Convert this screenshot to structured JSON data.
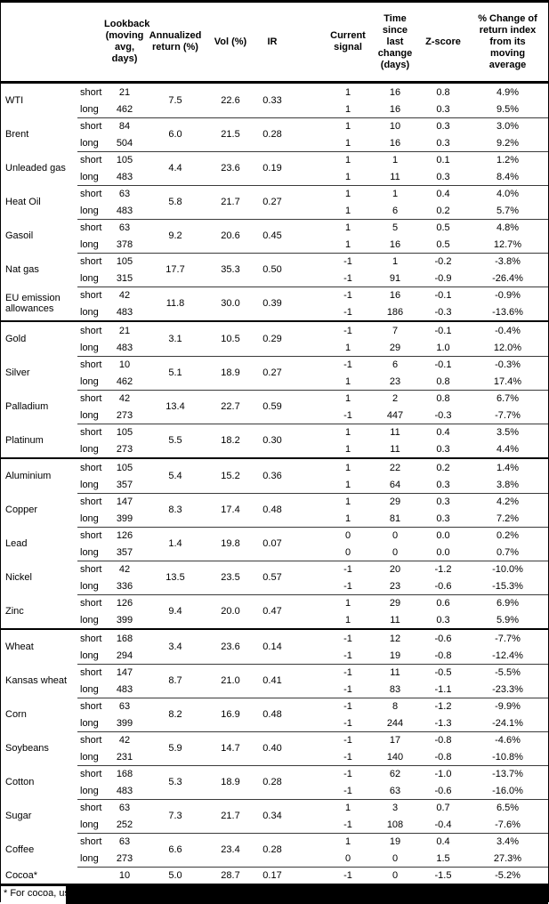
{
  "colors": {
    "background": "#ffffff",
    "text": "#000000",
    "thick_border": "#000000",
    "thin_line": "#3a3a3a",
    "redaction_bar": "#000000"
  },
  "table": {
    "columns": [
      {
        "key": "name",
        "label": ""
      },
      {
        "key": "position",
        "label": ""
      },
      {
        "key": "lookback",
        "label": "Lookback\n(moving\navg, days)"
      },
      {
        "key": "annret",
        "label": "Annualized\nreturn (%)"
      },
      {
        "key": "vol",
        "label": "Vol (%)"
      },
      {
        "key": "ir",
        "label": "IR"
      },
      {
        "key": "signal",
        "label": "Current\nsignal"
      },
      {
        "key": "time",
        "label": "Time since\nlast change\n(days)"
      },
      {
        "key": "zscore",
        "label": "Z-score"
      },
      {
        "key": "pct",
        "label": "% Change of\nreturn index\nfrom its\nmoving\naverage"
      }
    ],
    "pos_labels": {
      "short": "short",
      "long": "long"
    },
    "rows": [
      {
        "name": "WTI",
        "annret": "7.5",
        "vol": "22.6",
        "ir": "0.33",
        "short": {
          "lookback": "21",
          "signal": "1",
          "time": "16",
          "zscore": "0.8",
          "pct": "4.9%"
        },
        "long": {
          "lookback": "462",
          "signal": "1",
          "time": "16",
          "zscore": "0.3",
          "pct": "9.5%"
        }
      },
      {
        "name": "Brent",
        "annret": "6.0",
        "vol": "21.5",
        "ir": "0.28",
        "short": {
          "lookback": "84",
          "signal": "1",
          "time": "10",
          "zscore": "0.3",
          "pct": "3.0%"
        },
        "long": {
          "lookback": "504",
          "signal": "1",
          "time": "16",
          "zscore": "0.3",
          "pct": "9.2%"
        }
      },
      {
        "name": "Unleaded gas",
        "annret": "4.4",
        "vol": "23.6",
        "ir": "0.19",
        "short": {
          "lookback": "105",
          "signal": "1",
          "time": "1",
          "zscore": "0.1",
          "pct": "1.2%"
        },
        "long": {
          "lookback": "483",
          "signal": "1",
          "time": "11",
          "zscore": "0.3",
          "pct": "8.4%"
        }
      },
      {
        "name": "Heat Oil",
        "annret": "5.8",
        "vol": "21.7",
        "ir": "0.27",
        "short": {
          "lookback": "63",
          "signal": "1",
          "time": "1",
          "zscore": "0.4",
          "pct": "4.0%"
        },
        "long": {
          "lookback": "483",
          "signal": "1",
          "time": "6",
          "zscore": "0.2",
          "pct": "5.7%"
        }
      },
      {
        "name": "Gasoil",
        "annret": "9.2",
        "vol": "20.6",
        "ir": "0.45",
        "short": {
          "lookback": "63",
          "signal": "1",
          "time": "5",
          "zscore": "0.5",
          "pct": "4.8%"
        },
        "long": {
          "lookback": "378",
          "signal": "1",
          "time": "16",
          "zscore": "0.5",
          "pct": "12.7%"
        }
      },
      {
        "name": "Nat gas",
        "annret": "17.7",
        "vol": "35.3",
        "ir": "0.50",
        "short": {
          "lookback": "105",
          "signal": "-1",
          "time": "1",
          "zscore": "-0.2",
          "pct": "-3.8%"
        },
        "long": {
          "lookback": "315",
          "signal": "-1",
          "time": "91",
          "zscore": "-0.9",
          "pct": "-26.4%"
        }
      },
      {
        "name": "EU emission allowances",
        "annret": "11.8",
        "vol": "30.0",
        "ir": "0.39",
        "short": {
          "lookback": "42",
          "signal": "-1",
          "time": "16",
          "zscore": "-0.1",
          "pct": "-0.9%"
        },
        "long": {
          "lookback": "483",
          "signal": "-1",
          "time": "186",
          "zscore": "-0.3",
          "pct": "-13.6%"
        }
      },
      {
        "name": "Gold",
        "section_start": true,
        "annret": "3.1",
        "vol": "10.5",
        "ir": "0.29",
        "short": {
          "lookback": "21",
          "signal": "-1",
          "time": "7",
          "zscore": "-0.1",
          "pct": "-0.4%"
        },
        "long": {
          "lookback": "483",
          "signal": "1",
          "time": "29",
          "zscore": "1.0",
          "pct": "12.0%"
        }
      },
      {
        "name": "Silver",
        "annret": "5.1",
        "vol": "18.9",
        "ir": "0.27",
        "short": {
          "lookback": "10",
          "signal": "-1",
          "time": "6",
          "zscore": "-0.1",
          "pct": "-0.3%"
        },
        "long": {
          "lookback": "462",
          "signal": "1",
          "time": "23",
          "zscore": "0.8",
          "pct": "17.4%"
        }
      },
      {
        "name": "Palladium",
        "annret": "13.4",
        "vol": "22.7",
        "ir": "0.59",
        "short": {
          "lookback": "42",
          "signal": "1",
          "time": "2",
          "zscore": "0.8",
          "pct": "6.7%"
        },
        "long": {
          "lookback": "273",
          "signal": "-1",
          "time": "447",
          "zscore": "-0.3",
          "pct": "-7.7%"
        }
      },
      {
        "name": "Platinum",
        "annret": "5.5",
        "vol": "18.2",
        "ir": "0.30",
        "short": {
          "lookback": "105",
          "signal": "1",
          "time": "11",
          "zscore": "0.4",
          "pct": "3.5%"
        },
        "long": {
          "lookback": "273",
          "signal": "1",
          "time": "11",
          "zscore": "0.3",
          "pct": "4.4%"
        }
      },
      {
        "name": "Aluminium",
        "section_start": true,
        "annret": "5.4",
        "vol": "15.2",
        "ir": "0.36",
        "short": {
          "lookback": "105",
          "signal": "1",
          "time": "22",
          "zscore": "0.2",
          "pct": "1.4%"
        },
        "long": {
          "lookback": "357",
          "signal": "1",
          "time": "64",
          "zscore": "0.3",
          "pct": "3.8%"
        }
      },
      {
        "name": "Copper",
        "annret": "8.3",
        "vol": "17.4",
        "ir": "0.48",
        "short": {
          "lookback": "147",
          "signal": "1",
          "time": "29",
          "zscore": "0.3",
          "pct": "4.2%"
        },
        "long": {
          "lookback": "399",
          "signal": "1",
          "time": "81",
          "zscore": "0.3",
          "pct": "7.2%"
        }
      },
      {
        "name": "Lead",
        "annret": "1.4",
        "vol": "19.8",
        "ir": "0.07",
        "short": {
          "lookback": "126",
          "signal": "0",
          "time": "0",
          "zscore": "0.0",
          "pct": "0.2%"
        },
        "long": {
          "lookback": "357",
          "signal": "0",
          "time": "0",
          "zscore": "0.0",
          "pct": "0.7%"
        }
      },
      {
        "name": "Nickel",
        "annret": "13.5",
        "vol": "23.5",
        "ir": "0.57",
        "short": {
          "lookback": "42",
          "signal": "-1",
          "time": "20",
          "zscore": "-1.2",
          "pct": "-10.0%"
        },
        "long": {
          "lookback": "336",
          "signal": "-1",
          "time": "23",
          "zscore": "-0.6",
          "pct": "-15.3%"
        }
      },
      {
        "name": "Zinc",
        "annret": "9.4",
        "vol": "20.0",
        "ir": "0.47",
        "short": {
          "lookback": "126",
          "signal": "1",
          "time": "29",
          "zscore": "0.6",
          "pct": "6.9%"
        },
        "long": {
          "lookback": "399",
          "signal": "1",
          "time": "11",
          "zscore": "0.3",
          "pct": "5.9%"
        }
      },
      {
        "name": "Wheat",
        "section_start": true,
        "annret": "3.4",
        "vol": "23.6",
        "ir": "0.14",
        "short": {
          "lookback": "168",
          "signal": "-1",
          "time": "12",
          "zscore": "-0.6",
          "pct": "-7.7%"
        },
        "long": {
          "lookback": "294",
          "signal": "-1",
          "time": "19",
          "zscore": "-0.8",
          "pct": "-12.4%"
        }
      },
      {
        "name": "Kansas wheat",
        "annret": "8.7",
        "vol": "21.0",
        "ir": "0.41",
        "short": {
          "lookback": "147",
          "signal": "-1",
          "time": "11",
          "zscore": "-0.5",
          "pct": "-5.5%"
        },
        "long": {
          "lookback": "483",
          "signal": "-1",
          "time": "83",
          "zscore": "-1.1",
          "pct": "-23.3%"
        }
      },
      {
        "name": "Corn",
        "annret": "8.2",
        "vol": "16.9",
        "ir": "0.48",
        "short": {
          "lookback": "63",
          "signal": "-1",
          "time": "8",
          "zscore": "-1.2",
          "pct": "-9.9%"
        },
        "long": {
          "lookback": "399",
          "signal": "-1",
          "time": "244",
          "zscore": "-1.3",
          "pct": "-24.1%"
        }
      },
      {
        "name": "Soybeans",
        "annret": "5.9",
        "vol": "14.7",
        "ir": "0.40",
        "short": {
          "lookback": "42",
          "signal": "-1",
          "time": "17",
          "zscore": "-0.8",
          "pct": "-4.6%"
        },
        "long": {
          "lookback": "231",
          "signal": "-1",
          "time": "140",
          "zscore": "-0.8",
          "pct": "-10.8%"
        }
      },
      {
        "name": "Cotton",
        "annret": "5.3",
        "vol": "18.9",
        "ir": "0.28",
        "short": {
          "lookback": "168",
          "signal": "-1",
          "time": "62",
          "zscore": "-1.0",
          "pct": "-13.7%"
        },
        "long": {
          "lookback": "483",
          "signal": "-1",
          "time": "63",
          "zscore": "-0.6",
          "pct": "-16.0%"
        }
      },
      {
        "name": "Sugar",
        "annret": "7.3",
        "vol": "21.7",
        "ir": "0.34",
        "short": {
          "lookback": "63",
          "signal": "1",
          "time": "3",
          "zscore": "0.7",
          "pct": "6.5%"
        },
        "long": {
          "lookback": "252",
          "signal": "-1",
          "time": "108",
          "zscore": "-0.4",
          "pct": "-7.6%"
        }
      },
      {
        "name": "Coffee",
        "annret": "6.6",
        "vol": "23.4",
        "ir": "0.28",
        "short": {
          "lookback": "63",
          "signal": "1",
          "time": "19",
          "zscore": "0.4",
          "pct": "3.4%"
        },
        "long": {
          "lookback": "273",
          "signal": "0",
          "time": "0",
          "zscore": "1.5",
          "pct": "27.3%"
        }
      },
      {
        "name": "Cocoa*",
        "single": true,
        "annret": "5.0",
        "vol": "28.7",
        "ir": "0.17",
        "row": {
          "lookback": "10",
          "signal": "-1",
          "time": "0",
          "zscore": "-1.5",
          "pct": "-5.2%"
        }
      }
    ],
    "footnote": "* For cocoa, uses c"
  }
}
